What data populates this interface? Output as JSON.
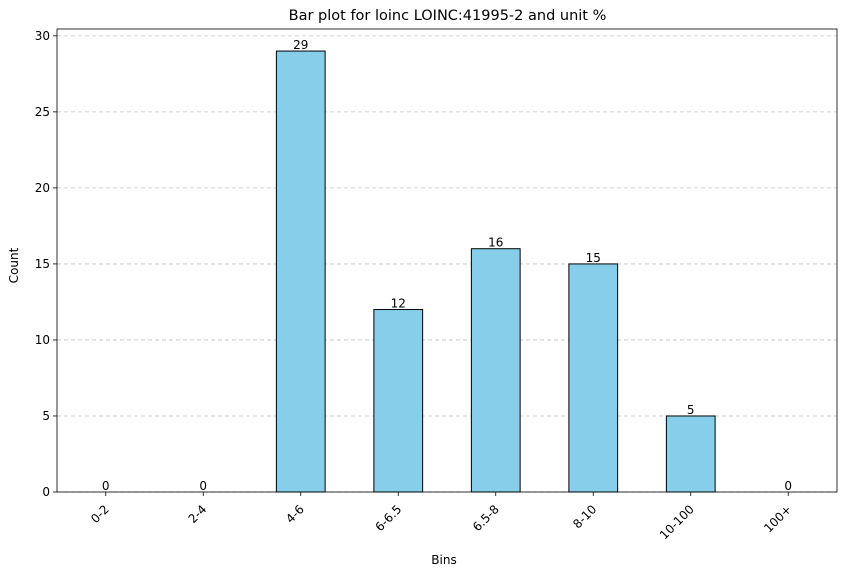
{
  "chart_data": {
    "type": "bar",
    "title": "Bar plot for loinc LOINC:41995-2 and unit %",
    "xlabel": "Bins",
    "ylabel": "Count",
    "categories": [
      "0-2",
      "2-4",
      "4-6",
      "6-6.5",
      "6.5-8",
      "8-10",
      "10-100",
      "100+"
    ],
    "values": [
      0,
      0,
      29,
      12,
      16,
      15,
      5,
      0
    ],
    "data_labels": [
      "0",
      "0",
      "29",
      "12",
      "16",
      "15",
      "5",
      "0"
    ],
    "ylim": [
      0,
      30.45
    ],
    "yticks": [
      0,
      5,
      10,
      15,
      20,
      25,
      30
    ],
    "ytick_labels": [
      "0",
      "5",
      "10",
      "15",
      "20",
      "25",
      "30"
    ],
    "grid": "y-dashed",
    "legend": "none",
    "bar_color": "#87ceeb",
    "edge_color": "#000000",
    "grid_color": "#c0c0c0"
  }
}
